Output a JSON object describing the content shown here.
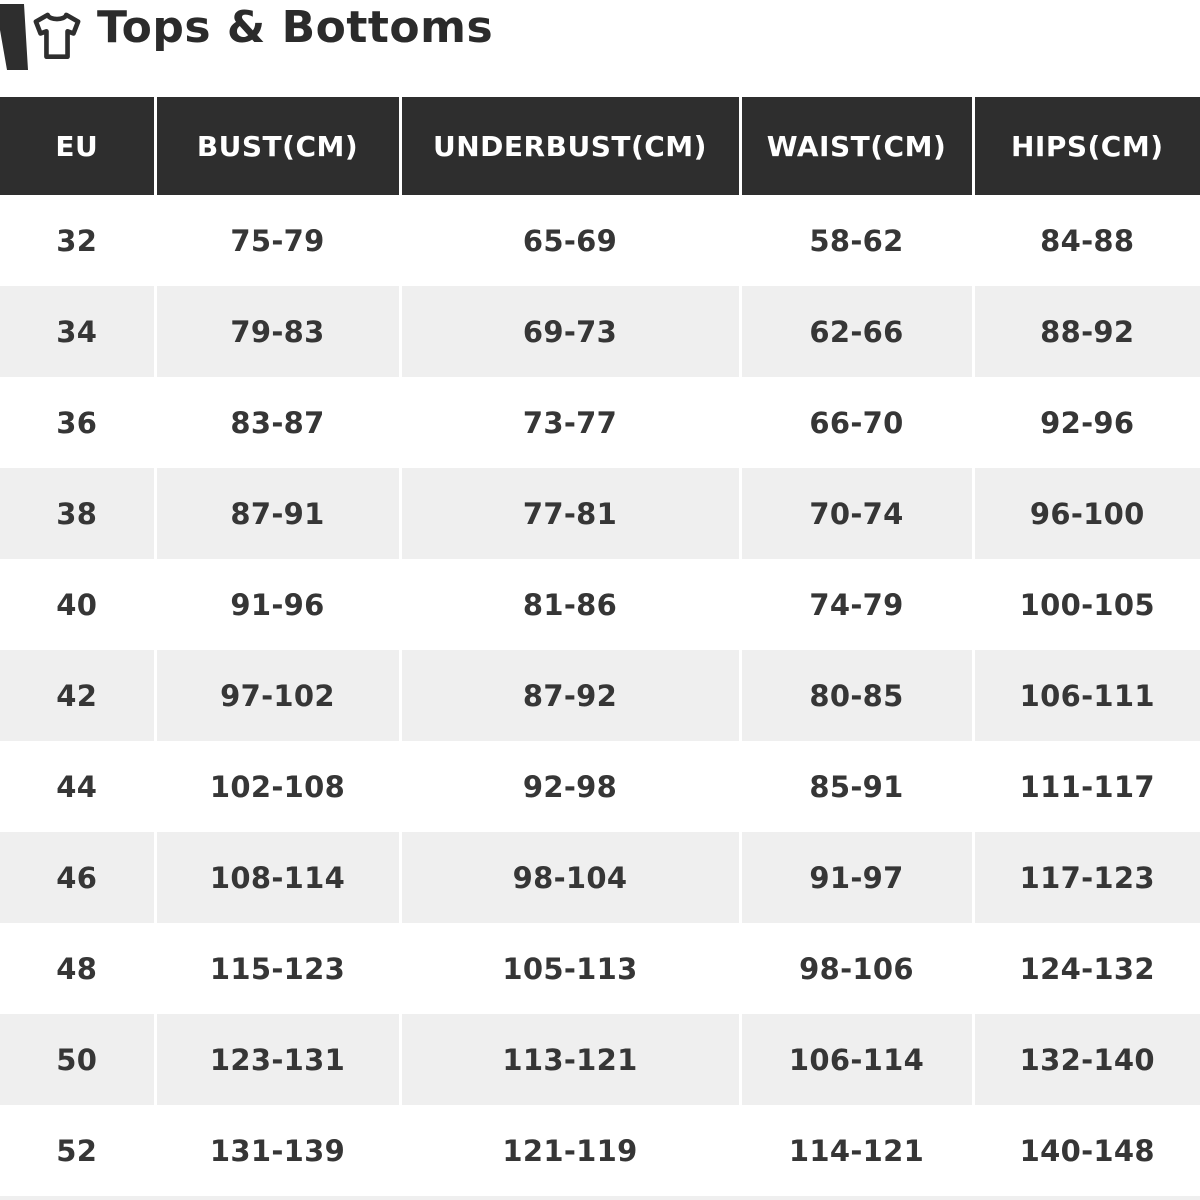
{
  "header": {
    "title": "Tops & Bottoms",
    "icons": [
      "pants-icon",
      "tshirt-icon"
    ]
  },
  "colors": {
    "header_bg": "#2e2e2e",
    "header_text": "#ffffff",
    "title_text": "#2b2b2b",
    "body_text": "#363636",
    "row_bg": "#ffffff",
    "alt_row_bg": "#efefef"
  },
  "chart_data": {
    "type": "table",
    "title": "Tops & Bottoms",
    "columns": [
      "EU",
      "BUST(CM)",
      "UNDERBUST(CM)",
      "WAIST(CM)",
      "HIPS(CM)"
    ],
    "rows": [
      [
        "32",
        "75-79",
        "65-69",
        "58-62",
        "84-88"
      ],
      [
        "34",
        "79-83",
        "69-73",
        "62-66",
        "88-92"
      ],
      [
        "36",
        "83-87",
        "73-77",
        "66-70",
        "92-96"
      ],
      [
        "38",
        "87-91",
        "77-81",
        "70-74",
        "96-100"
      ],
      [
        "40",
        "91-96",
        "81-86",
        "74-79",
        "100-105"
      ],
      [
        "42",
        "97-102",
        "87-92",
        "80-85",
        "106-111"
      ],
      [
        "44",
        "102-108",
        "92-98",
        "85-91",
        "111-117"
      ],
      [
        "46",
        "108-114",
        "98-104",
        "91-97",
        "117-123"
      ],
      [
        "48",
        "115-123",
        "105-113",
        "98-106",
        "124-132"
      ],
      [
        "50",
        "123-131",
        "113-121",
        "106-114",
        "132-140"
      ],
      [
        "52",
        "131-139",
        "121-119",
        "114-121",
        "140-148"
      ]
    ]
  }
}
